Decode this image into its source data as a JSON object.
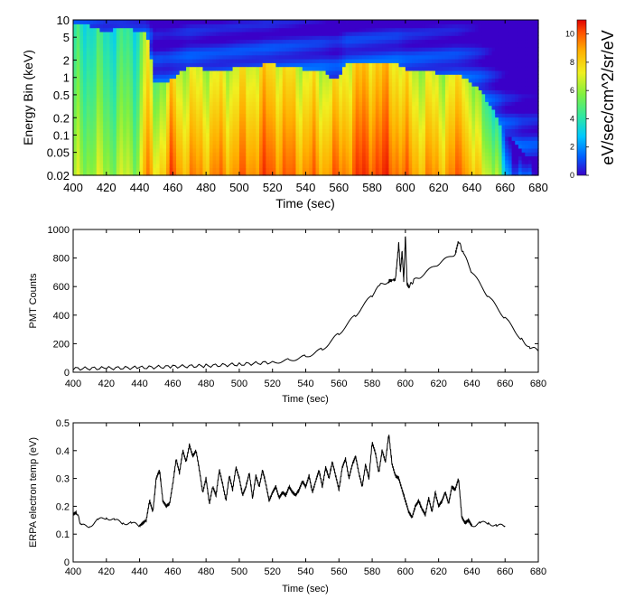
{
  "chart_data": [
    {
      "type": "heatmap",
      "xlabel": "Time (sec)",
      "ylabel": "Energy Bin (keV)",
      "xlim": [
        400,
        680
      ],
      "xticks": [
        "400",
        "420",
        "440",
        "460",
        "480",
        "500",
        "520",
        "540",
        "560",
        "580",
        "600",
        "620",
        "640",
        "660",
        "680"
      ],
      "yscale": "log",
      "ylim": [
        0.02,
        10
      ],
      "yticks": [
        "10",
        "5",
        "2",
        "1",
        "0.5",
        "0.2",
        "0.1",
        "0.05",
        "0.02"
      ],
      "colorbar": {
        "label": "eV/sec/cm^2/sr/eV",
        "range": [
          0,
          11
        ],
        "ticks": [
          "0",
          "2",
          "4",
          "6",
          "8",
          "10"
        ],
        "colormap": [
          "#3a00c8",
          "#0060ff",
          "#00c8ff",
          "#30e8a0",
          "#80f040",
          "#f0f020",
          "#ffb000",
          "#ff5000",
          "#e00000"
        ]
      },
      "intensity_profile": {
        "time": [
          400,
          410,
          420,
          430,
          440,
          444,
          448,
          452,
          456,
          460,
          464,
          470,
          480,
          490,
          500,
          510,
          515,
          520,
          525,
          530,
          540,
          550,
          556,
          560,
          565,
          570,
          575,
          580,
          585,
          590,
          595,
          600,
          605,
          610,
          620,
          630,
          635,
          640,
          645,
          650,
          655,
          660,
          665,
          670,
          680
        ],
        "low_energy_level": [
          5.8,
          6.0,
          5.9,
          6.0,
          6.2,
          8.8,
          7.4,
          7.8,
          8.0,
          9.6,
          8.6,
          8.4,
          8.6,
          8.7,
          8.8,
          9.1,
          9.4,
          9.5,
          9.2,
          9.0,
          8.8,
          8.6,
          9.0,
          8.8,
          9.2,
          9.5,
          9.9,
          10.0,
          9.7,
          9.9,
          9.4,
          8.8,
          8.6,
          8.4,
          8.4,
          8.7,
          9.6,
          7.8,
          7.0,
          6.6,
          6.2,
          2.5,
          1.8,
          1.2,
          0.8
        ],
        "upper_energy_keV": [
          8,
          8,
          6,
          8,
          6,
          6,
          0.8,
          0.9,
          0.8,
          1,
          1.2,
          1.6,
          1.4,
          1.3,
          1.5,
          1.5,
          1.7,
          1.7,
          1.6,
          1.6,
          1.4,
          1.3,
          1.0,
          1.0,
          1.8,
          1.8,
          1.8,
          1.8,
          1.8,
          1.8,
          1.8,
          1.4,
          1.3,
          1.3,
          1.2,
          1.2,
          1.0,
          0.8,
          0.6,
          0.35,
          0.2,
          0.1,
          0.08,
          0.05,
          0.04
        ]
      }
    },
    {
      "type": "line",
      "xlabel": "Time (sec)",
      "ylabel": "PMT Counts",
      "xlim": [
        400,
        680
      ],
      "ylim": [
        0,
        1000
      ],
      "xticks": [
        "400",
        "420",
        "440",
        "460",
        "480",
        "500",
        "520",
        "540",
        "560",
        "580",
        "600",
        "620",
        "640",
        "660",
        "680"
      ],
      "yticks": [
        "0",
        "200",
        "400",
        "600",
        "800",
        "1000"
      ],
      "series": [
        {
          "x": [
            400,
            420,
            440,
            460,
            480,
            500,
            520,
            530,
            540,
            550,
            560,
            570,
            580,
            585,
            590,
            594,
            596,
            597,
            598,
            599,
            600,
            601,
            602,
            605,
            610,
            620,
            630,
            632,
            635,
            640,
            650,
            660,
            670,
            675,
            680
          ],
          "y": [
            25,
            28,
            32,
            40,
            45,
            55,
            70,
            85,
            110,
            160,
            270,
            400,
            540,
            610,
            640,
            650,
            900,
            700,
            850,
            640,
            960,
            620,
            600,
            640,
            680,
            760,
            830,
            920,
            830,
            700,
            530,
            380,
            230,
            175,
            150
          ]
        }
      ]
    },
    {
      "type": "line",
      "xlabel": "Time (sec)",
      "ylabel": "ERPA electron temp (eV)",
      "xlim": [
        400,
        680
      ],
      "ylim": [
        0,
        0.5
      ],
      "xticks": [
        "400",
        "420",
        "440",
        "460",
        "480",
        "500",
        "520",
        "540",
        "560",
        "580",
        "600",
        "620",
        "640",
        "660",
        "680"
      ],
      "yticks": [
        "0",
        "0.1",
        "0.2",
        "0.3",
        "0.4",
        "0.5"
      ],
      "series": [
        {
          "x": [
            400,
            402,
            405,
            410,
            415,
            420,
            425,
            430,
            435,
            440,
            444,
            446,
            448,
            450,
            452,
            454,
            456,
            458,
            460,
            462,
            464,
            466,
            468,
            470,
            472,
            474,
            476,
            478,
            480,
            482,
            484,
            486,
            488,
            490,
            492,
            494,
            496,
            498,
            500,
            502,
            504,
            506,
            508,
            510,
            512,
            514,
            516,
            518,
            520,
            522,
            524,
            526,
            528,
            530,
            532,
            534,
            536,
            538,
            540,
            542,
            544,
            546,
            548,
            550,
            552,
            554,
            556,
            558,
            560,
            562,
            564,
            566,
            568,
            570,
            572,
            574,
            576,
            578,
            580,
            582,
            584,
            586,
            588,
            590,
            592,
            594,
            596,
            598,
            600,
            602,
            604,
            606,
            608,
            610,
            612,
            614,
            616,
            618,
            620,
            622,
            624,
            626,
            628,
            630,
            632,
            634,
            636,
            638,
            640,
            645,
            650,
            655,
            660
          ],
          "y": [
            0.17,
            0.18,
            0.13,
            0.13,
            0.15,
            0.16,
            0.15,
            0.14,
            0.14,
            0.13,
            0.15,
            0.22,
            0.18,
            0.3,
            0.33,
            0.22,
            0.2,
            0.21,
            0.28,
            0.37,
            0.32,
            0.4,
            0.36,
            0.42,
            0.38,
            0.4,
            0.33,
            0.25,
            0.3,
            0.21,
            0.27,
            0.24,
            0.33,
            0.28,
            0.22,
            0.31,
            0.26,
            0.34,
            0.3,
            0.24,
            0.27,
            0.32,
            0.23,
            0.31,
            0.27,
            0.33,
            0.28,
            0.22,
            0.25,
            0.27,
            0.23,
            0.25,
            0.24,
            0.27,
            0.25,
            0.24,
            0.26,
            0.29,
            0.27,
            0.31,
            0.25,
            0.29,
            0.33,
            0.27,
            0.34,
            0.3,
            0.36,
            0.31,
            0.26,
            0.34,
            0.37,
            0.3,
            0.35,
            0.38,
            0.32,
            0.27,
            0.35,
            0.3,
            0.43,
            0.39,
            0.32,
            0.4,
            0.36,
            0.46,
            0.35,
            0.31,
            0.3,
            0.26,
            0.22,
            0.18,
            0.16,
            0.2,
            0.22,
            0.19,
            0.17,
            0.23,
            0.18,
            0.25,
            0.2,
            0.22,
            0.25,
            0.21,
            0.27,
            0.26,
            0.3,
            0.16,
            0.14,
            0.15,
            0.13,
            0.14,
            0.14,
            0.13,
            0.13
          ]
        }
      ]
    }
  ]
}
